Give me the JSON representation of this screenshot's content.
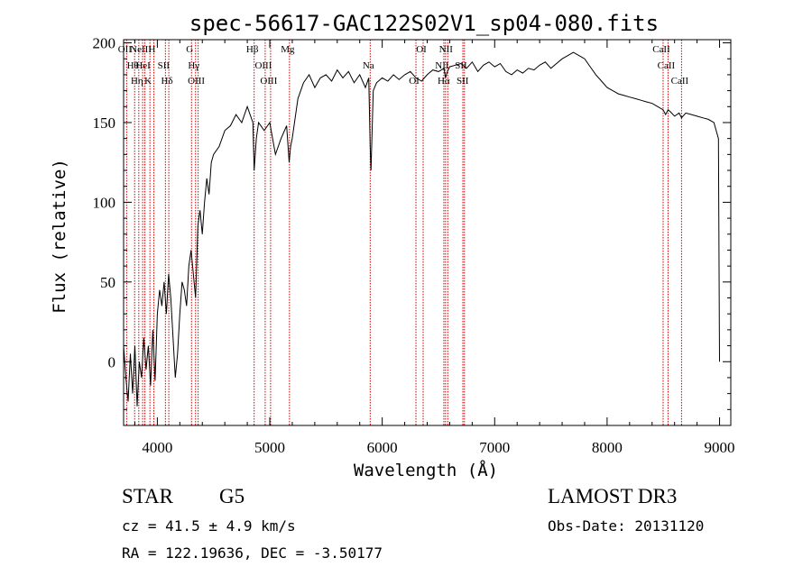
{
  "chart_data": {
    "type": "line",
    "title": "spec-56617-GAC122S02V1_sp04-080.fits",
    "xlabel": "Wavelength (Å)",
    "ylabel": "Flux (relative)",
    "xlim": [
      3700,
      9100
    ],
    "ylim": [
      -40,
      202
    ],
    "xticks": [
      4000,
      5000,
      6000,
      7000,
      8000,
      9000
    ],
    "yticks": [
      0,
      50,
      100,
      150,
      200
    ],
    "grid": false,
    "series": [
      {
        "x": [
          3700,
          3720,
          3740,
          3760,
          3780,
          3800,
          3820,
          3840,
          3860,
          3880,
          3900,
          3920,
          3940,
          3960,
          3980,
          4000,
          4020,
          4040,
          4060,
          4080,
          4100,
          4120,
          4140,
          4160,
          4180,
          4200,
          4220,
          4240,
          4260,
          4280,
          4300,
          4320,
          4340,
          4360,
          4380,
          4400,
          4420,
          4440,
          4460,
          4480,
          4500,
          4550,
          4600,
          4650,
          4700,
          4750,
          4800,
          4850,
          4861,
          4880,
          4900,
          4950,
          5000,
          5050,
          5100,
          5150,
          5172,
          5185,
          5200,
          5250,
          5300,
          5350,
          5400,
          5450,
          5500,
          5550,
          5600,
          5650,
          5700,
          5750,
          5800,
          5850,
          5880,
          5893,
          5900,
          5920,
          5950,
          6000,
          6050,
          6100,
          6150,
          6200,
          6250,
          6300,
          6350,
          6400,
          6450,
          6500,
          6550,
          6563,
          6580,
          6600,
          6650,
          6700,
          6750,
          6800,
          6850,
          6900,
          6950,
          7000,
          7050,
          7100,
          7150,
          7200,
          7250,
          7300,
          7350,
          7400,
          7450,
          7500,
          7550,
          7600,
          7650,
          7700,
          7750,
          7800,
          7850,
          7900,
          7950,
          8000,
          8050,
          8100,
          8150,
          8200,
          8250,
          8300,
          8350,
          8400,
          8450,
          8498,
          8520,
          8542,
          8560,
          8600,
          8640,
          8662,
          8700,
          8750,
          8800,
          8850,
          8900,
          8950,
          8990,
          9000
        ],
        "y": [
          10,
          -10,
          -25,
          5,
          -20,
          10,
          -28,
          0,
          -10,
          15,
          -5,
          10,
          -15,
          20,
          -12,
          30,
          45,
          35,
          50,
          30,
          55,
          40,
          15,
          -10,
          5,
          30,
          50,
          45,
          35,
          60,
          70,
          55,
          40,
          85,
          95,
          80,
          100,
          115,
          105,
          125,
          130,
          135,
          145,
          148,
          155,
          150,
          160,
          150,
          120,
          140,
          150,
          145,
          150,
          130,
          140,
          148,
          125,
          135,
          140,
          165,
          175,
          180,
          172,
          178,
          180,
          176,
          183,
          178,
          182,
          175,
          180,
          172,
          178,
          135,
          120,
          170,
          175,
          178,
          176,
          180,
          177,
          180,
          182,
          178,
          176,
          180,
          183,
          182,
          184,
          178,
          182,
          185,
          186,
          187,
          184,
          188,
          182,
          186,
          188,
          185,
          187,
          182,
          180,
          183,
          181,
          184,
          183,
          186,
          188,
          184,
          187,
          190,
          192,
          194,
          192,
          190,
          185,
          180,
          176,
          172,
          170,
          168,
          167,
          166,
          165,
          164,
          163,
          162,
          160,
          158,
          155,
          158,
          157,
          154,
          156,
          153,
          156,
          155,
          154,
          153,
          152,
          150,
          140,
          0
        ]
      }
    ],
    "line_markers": [
      {
        "wavelength": 3727,
        "label": "OII"
      },
      {
        "wavelength": 3798,
        "label": "Hθ"
      },
      {
        "wavelength": 3835,
        "label": "Hη"
      },
      {
        "wavelength": 3869,
        "label": "NeIII"
      },
      {
        "wavelength": 3889,
        "label": "HeI"
      },
      {
        "wavelength": 3934,
        "label": "K"
      },
      {
        "wavelength": 3969,
        "label": "H"
      },
      {
        "wavelength": 4072,
        "label": "SII"
      },
      {
        "wavelength": 4102,
        "label": "Hδ"
      },
      {
        "wavelength": 4304,
        "label": "G"
      },
      {
        "wavelength": 4340,
        "label": "Hγ"
      },
      {
        "wavelength": 4363,
        "label": "OIII"
      },
      {
        "wavelength": 4861,
        "label": "Hβ"
      },
      {
        "wavelength": 4959,
        "label": "OIII"
      },
      {
        "wavelength": 5007,
        "label": "OIII"
      },
      {
        "wavelength": 5175,
        "label": "Mg"
      },
      {
        "wavelength": 5893,
        "label": "Na"
      },
      {
        "wavelength": 6300,
        "label": "OI"
      },
      {
        "wavelength": 6364,
        "label": "OI"
      },
      {
        "wavelength": 6548,
        "label": "NII"
      },
      {
        "wavelength": 6563,
        "label": "Hα"
      },
      {
        "wavelength": 6583,
        "label": "NII"
      },
      {
        "wavelength": 6717,
        "label": "SII"
      },
      {
        "wavelength": 6731,
        "label": "SII"
      },
      {
        "wavelength": 8498,
        "label": "CaII"
      },
      {
        "wavelength": 8542,
        "label": "CaII"
      },
      {
        "wavelength": 8662,
        "label": "CaII"
      }
    ],
    "marker_color": "#cc0000",
    "line_color": "#000000"
  },
  "info": {
    "class": "STAR",
    "subclass": "G5",
    "survey": "LAMOST DR3",
    "cz": "cz = 41.5 ± 4.9 km/s",
    "obs_date": "Obs-Date: 20131120",
    "coords": "RA = 122.19636, DEC =  -3.50177"
  }
}
